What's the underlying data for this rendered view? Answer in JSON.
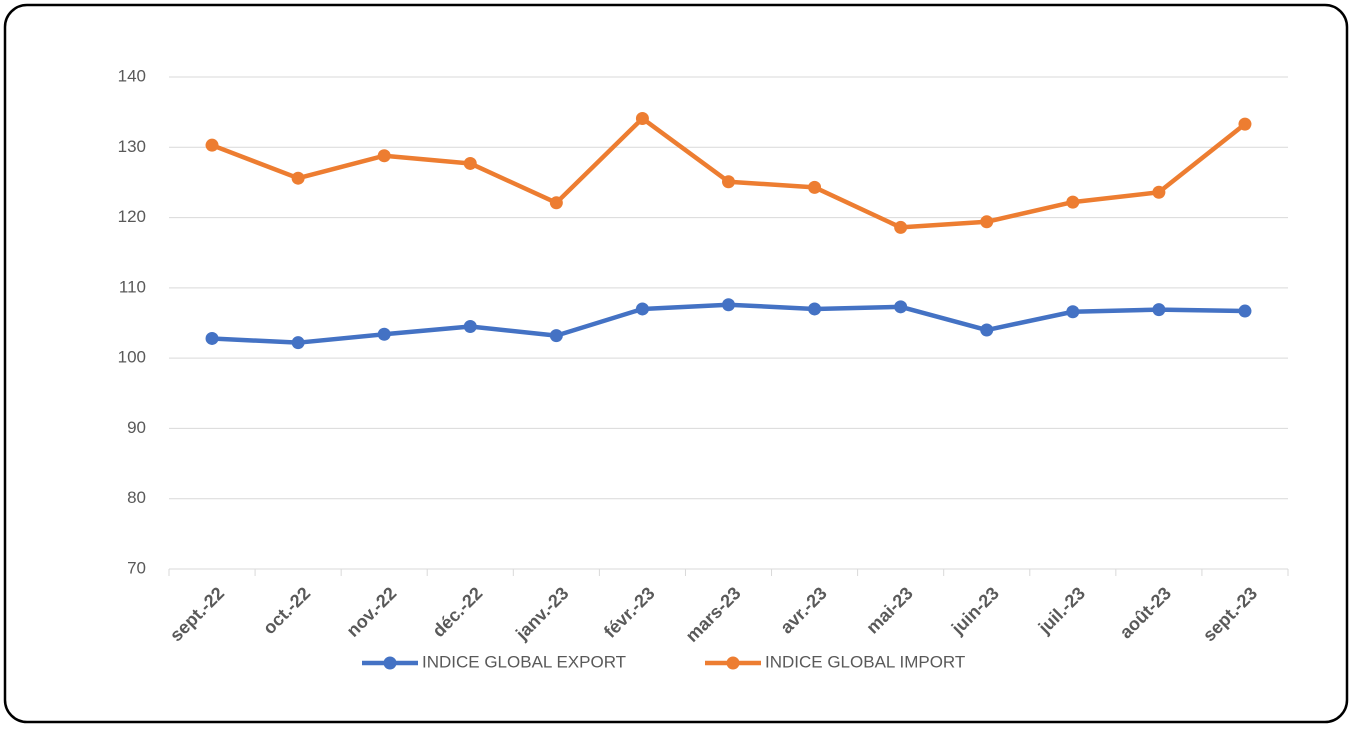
{
  "chart_data": {
    "type": "line",
    "categories": [
      "sept.-22",
      "oct.-22",
      "nov.-22",
      "déc.-22",
      "janv.-23",
      "févr.-23",
      "mars-23",
      "avr.-23",
      "mai-23",
      "juin-23",
      "juil.-23",
      "août-23",
      "sept.-23"
    ],
    "series": [
      {
        "name": "INDICE GLOBAL EXPORT",
        "color": "#4472c4",
        "values": [
          102.8,
          102.2,
          103.4,
          104.5,
          103.2,
          107.0,
          107.6,
          107.0,
          107.3,
          104.0,
          106.6,
          106.9,
          106.7
        ]
      },
      {
        "name": "INDICE GLOBAL IMPORT",
        "color": "#ed7d31",
        "values": [
          130.3,
          125.6,
          128.8,
          127.7,
          122.1,
          134.1,
          125.1,
          124.3,
          118.6,
          119.4,
          122.2,
          123.6,
          133.3
        ]
      }
    ],
    "ylim": [
      70,
      140
    ],
    "yticks": [
      70,
      80,
      90,
      100,
      110,
      120,
      130,
      140
    ],
    "grid": true,
    "legend": "bottom"
  }
}
